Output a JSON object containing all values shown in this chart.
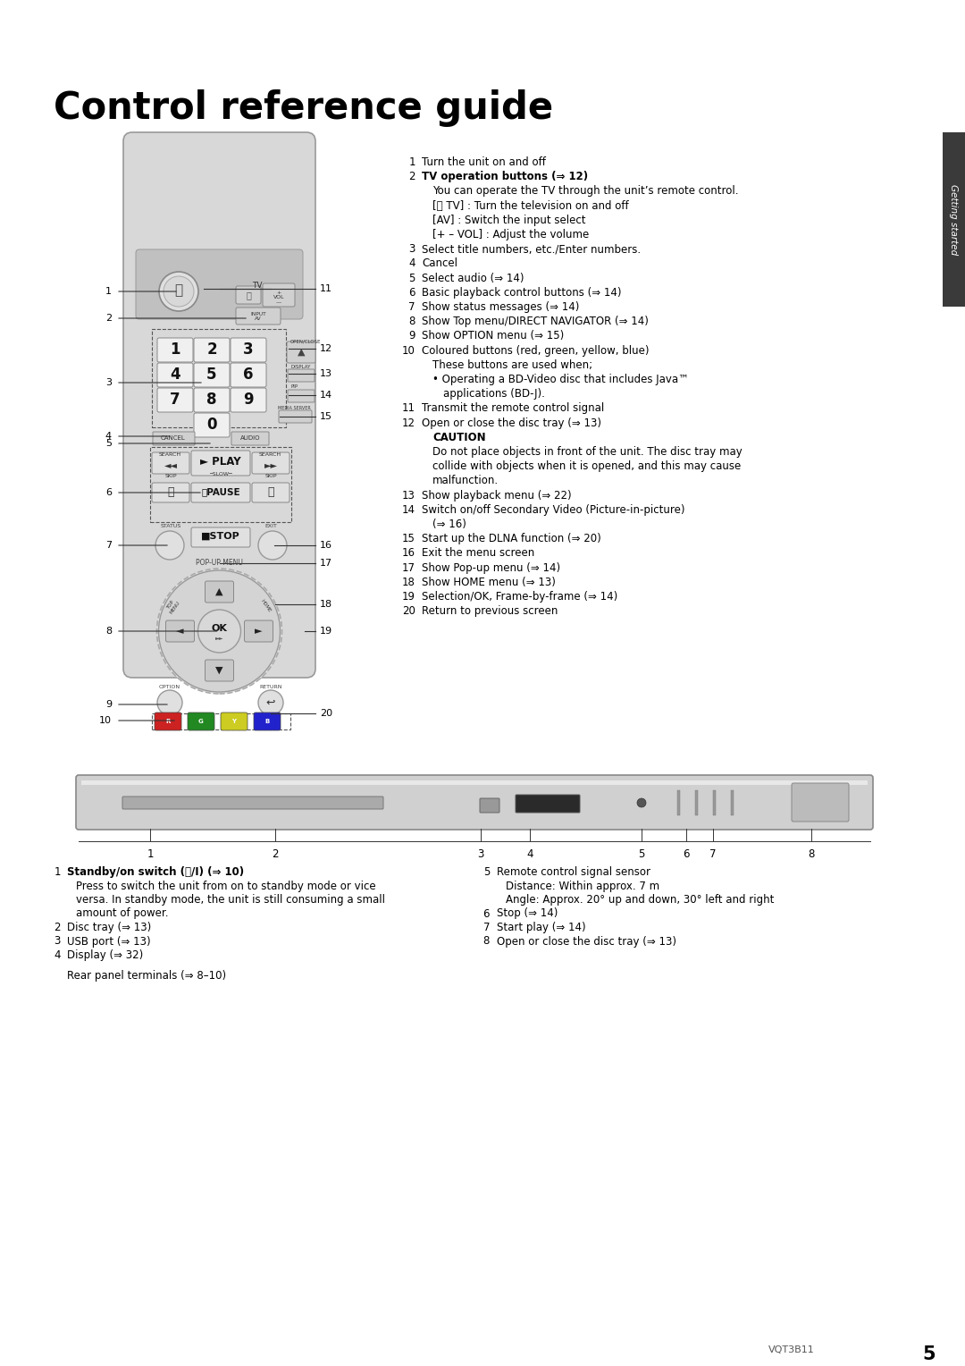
{
  "title": "Control reference guide",
  "bg_color": "#ffffff",
  "text_color": "#000000",
  "tab_color": "#3a3a3a",
  "tab_text": "Getting started",
  "right_items": [
    {
      "num": "1",
      "bold_num": false,
      "indent": 0,
      "bold": false,
      "text": "Turn the unit on and off"
    },
    {
      "num": "2",
      "bold_num": false,
      "indent": 0,
      "bold": true,
      "text": "TV operation buttons (⇒ 12)"
    },
    {
      "num": "",
      "bold_num": false,
      "indent": 1,
      "bold": false,
      "text": "You can operate the TV through the unit’s remote control."
    },
    {
      "num": "",
      "bold_num": false,
      "indent": 1,
      "bold": false,
      "text": "[⏻ TV] : Turn the television on and off"
    },
    {
      "num": "",
      "bold_num": false,
      "indent": 1,
      "bold": false,
      "text": "[AV] : Switch the input select"
    },
    {
      "num": "",
      "bold_num": false,
      "indent": 1,
      "bold": false,
      "text": "[+ – VOL] : Adjust the volume"
    },
    {
      "num": "3",
      "bold_num": false,
      "indent": 0,
      "bold": false,
      "text": "Select title numbers, etc./Enter numbers."
    },
    {
      "num": "4",
      "bold_num": false,
      "indent": 0,
      "bold": false,
      "text": "Cancel"
    },
    {
      "num": "5",
      "bold_num": false,
      "indent": 0,
      "bold": false,
      "text": "Select audio (⇒ 14)"
    },
    {
      "num": "6",
      "bold_num": false,
      "indent": 0,
      "bold": false,
      "text": "Basic playback control buttons (⇒ 14)"
    },
    {
      "num": "7",
      "bold_num": false,
      "indent": 0,
      "bold": false,
      "text": "Show status messages (⇒ 14)"
    },
    {
      "num": "8",
      "bold_num": false,
      "indent": 0,
      "bold": false,
      "text": "Show Top menu/DIRECT NAVIGATOR (⇒ 14)"
    },
    {
      "num": "9",
      "bold_num": false,
      "indent": 0,
      "bold": false,
      "text": "Show OPTION menu (⇒ 15)"
    },
    {
      "num": "10",
      "bold_num": false,
      "indent": 0,
      "bold": false,
      "text": "Coloured buttons (red, green, yellow, blue)"
    },
    {
      "num": "",
      "bold_num": false,
      "indent": 1,
      "bold": false,
      "text": "These buttons are used when;"
    },
    {
      "num": "",
      "bold_num": false,
      "indent": 1,
      "bold": false,
      "text": "• Operating a BD-Video disc that includes Java™"
    },
    {
      "num": "",
      "bold_num": false,
      "indent": 2,
      "bold": false,
      "text": "applications (BD-J)."
    },
    {
      "num": "11",
      "bold_num": false,
      "indent": 0,
      "bold": false,
      "text": "Transmit the remote control signal"
    },
    {
      "num": "12",
      "bold_num": false,
      "indent": 0,
      "bold": false,
      "text": "Open or close the disc tray (⇒ 13)"
    },
    {
      "num": "",
      "bold_num": false,
      "indent": 1,
      "bold": true,
      "text": "CAUTION"
    },
    {
      "num": "",
      "bold_num": false,
      "indent": 1,
      "bold": false,
      "text": "Do not place objects in front of the unit. The disc tray may"
    },
    {
      "num": "",
      "bold_num": false,
      "indent": 1,
      "bold": false,
      "text": "collide with objects when it is opened, and this may cause"
    },
    {
      "num": "",
      "bold_num": false,
      "indent": 1,
      "bold": false,
      "text": "malfunction."
    },
    {
      "num": "13",
      "bold_num": false,
      "indent": 0,
      "bold": false,
      "text": "Show playback menu (⇒ 22)"
    },
    {
      "num": "14",
      "bold_num": false,
      "indent": 0,
      "bold": false,
      "text": "Switch on/off Secondary Video (Picture-in-picture)"
    },
    {
      "num": "",
      "bold_num": false,
      "indent": 1,
      "bold": false,
      "text": "(⇒ 16)"
    },
    {
      "num": "15",
      "bold_num": false,
      "indent": 0,
      "bold": false,
      "text": "Start up the DLNA function (⇒ 20)"
    },
    {
      "num": "16",
      "bold_num": false,
      "indent": 0,
      "bold": false,
      "text": "Exit the menu screen"
    },
    {
      "num": "17",
      "bold_num": false,
      "indent": 0,
      "bold": false,
      "text": "Show Pop-up menu (⇒ 14)"
    },
    {
      "num": "18",
      "bold_num": false,
      "indent": 0,
      "bold": false,
      "text": "Show HOME menu (⇒ 13)"
    },
    {
      "num": "19",
      "bold_num": false,
      "indent": 0,
      "bold": false,
      "text": "Selection/OK, Frame-by-frame (⇒ 14)"
    },
    {
      "num": "20",
      "bold_num": false,
      "indent": 0,
      "bold": false,
      "text": "Return to previous screen"
    }
  ],
  "bottom_left_items": [
    {
      "num": "1",
      "bold": true,
      "text": "Standby/on switch (⏻/I) (⇒ 10)"
    },
    {
      "num": "",
      "bold": false,
      "text": "Press to switch the unit from on to standby mode or vice"
    },
    {
      "num": "",
      "bold": false,
      "text": "versa. In standby mode, the unit is still consuming a small"
    },
    {
      "num": "",
      "bold": false,
      "text": "amount of power."
    },
    {
      "num": "2",
      "bold": false,
      "text": "Disc tray (⇒ 13)"
    },
    {
      "num": "3",
      "bold": false,
      "text": "USB port (⇒ 13)"
    },
    {
      "num": "4",
      "bold": false,
      "text": "Display (⇒ 32)"
    }
  ],
  "bottom_right_items": [
    {
      "num": "5",
      "bold": false,
      "text": "Remote control signal sensor"
    },
    {
      "num": "",
      "bold": false,
      "text": "Distance: Within approx. 7 m"
    },
    {
      "num": "",
      "bold": false,
      "text": "Angle: Approx. 20° up and down, 30° left and right"
    },
    {
      "num": "6",
      "bold": false,
      "text": "Stop (⇒ 14)"
    },
    {
      "num": "7",
      "bold": false,
      "text": "Start play (⇒ 14)"
    },
    {
      "num": "8",
      "bold": false,
      "text": "Open or close the disc tray (⇒ 13)"
    }
  ],
  "rear_panel_text": "Rear panel terminals (⇒ 8–10)",
  "footer_text": "VQT3B11",
  "footer_page": "5"
}
